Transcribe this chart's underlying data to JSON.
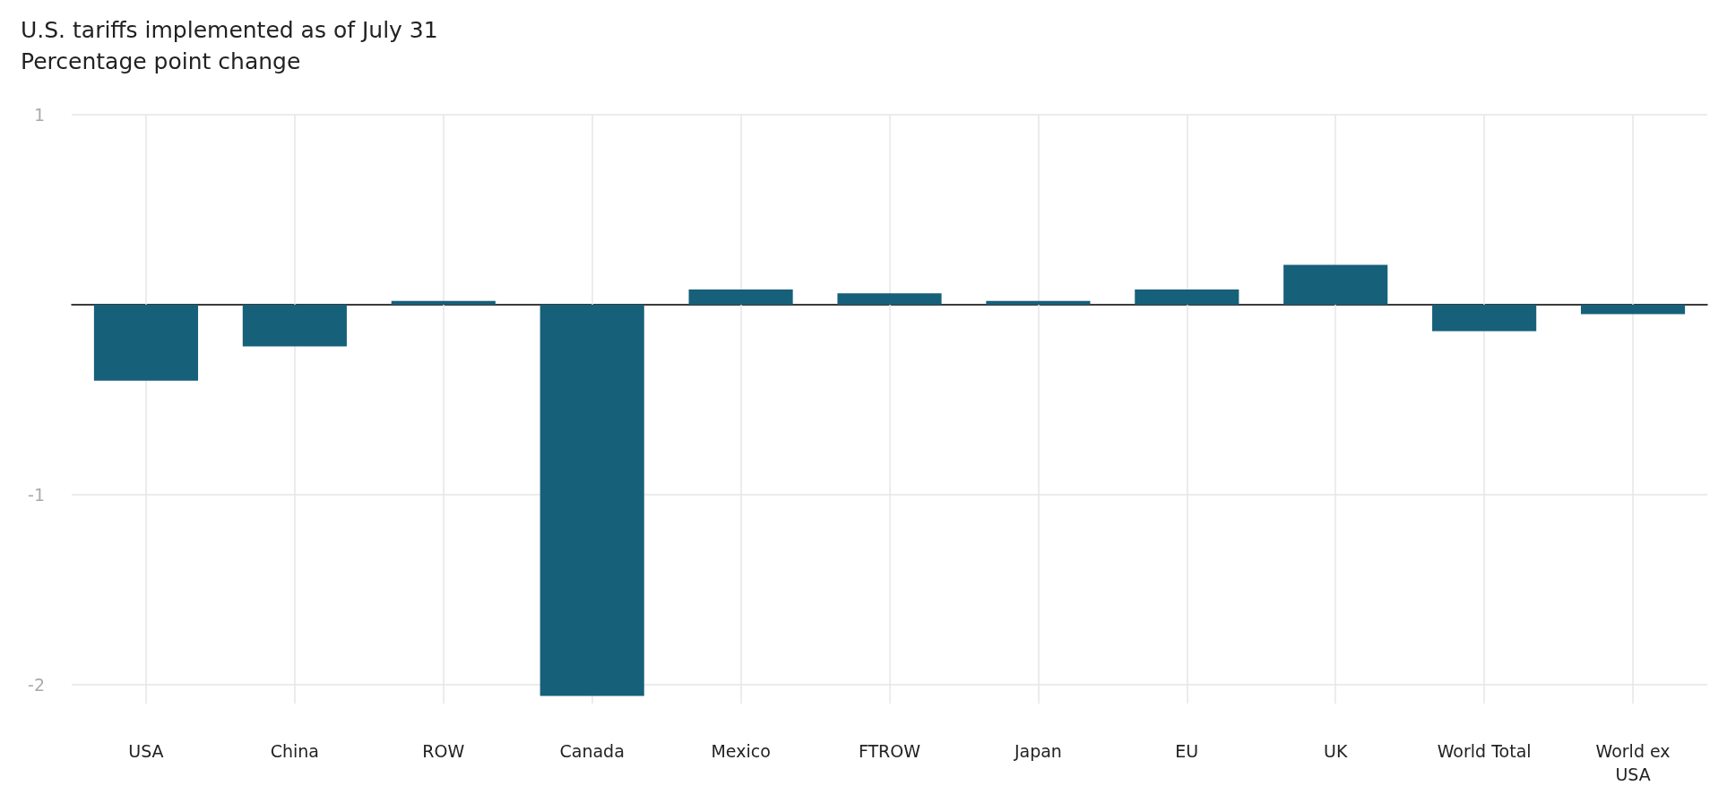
{
  "chart_data": {
    "type": "bar",
    "title": "U.S. tariffs implemented as of July 31",
    "subtitle": "Percentage point change",
    "categories": [
      "USA",
      "China",
      "ROW",
      "Canada",
      "Mexico",
      "FTROW",
      "Japan",
      "EU",
      "UK",
      "World Total",
      "World ex\nUSA"
    ],
    "values": [
      -0.4,
      -0.22,
      0.02,
      -2.06,
      0.08,
      0.06,
      0.02,
      0.08,
      0.21,
      -0.14,
      -0.05
    ],
    "color": "#16607a",
    "ylim": [
      -2.1,
      1
    ],
    "yticks": [
      -2,
      -1,
      {
        "value": 0,
        "label": null
      },
      1
    ],
    "grid": true
  }
}
